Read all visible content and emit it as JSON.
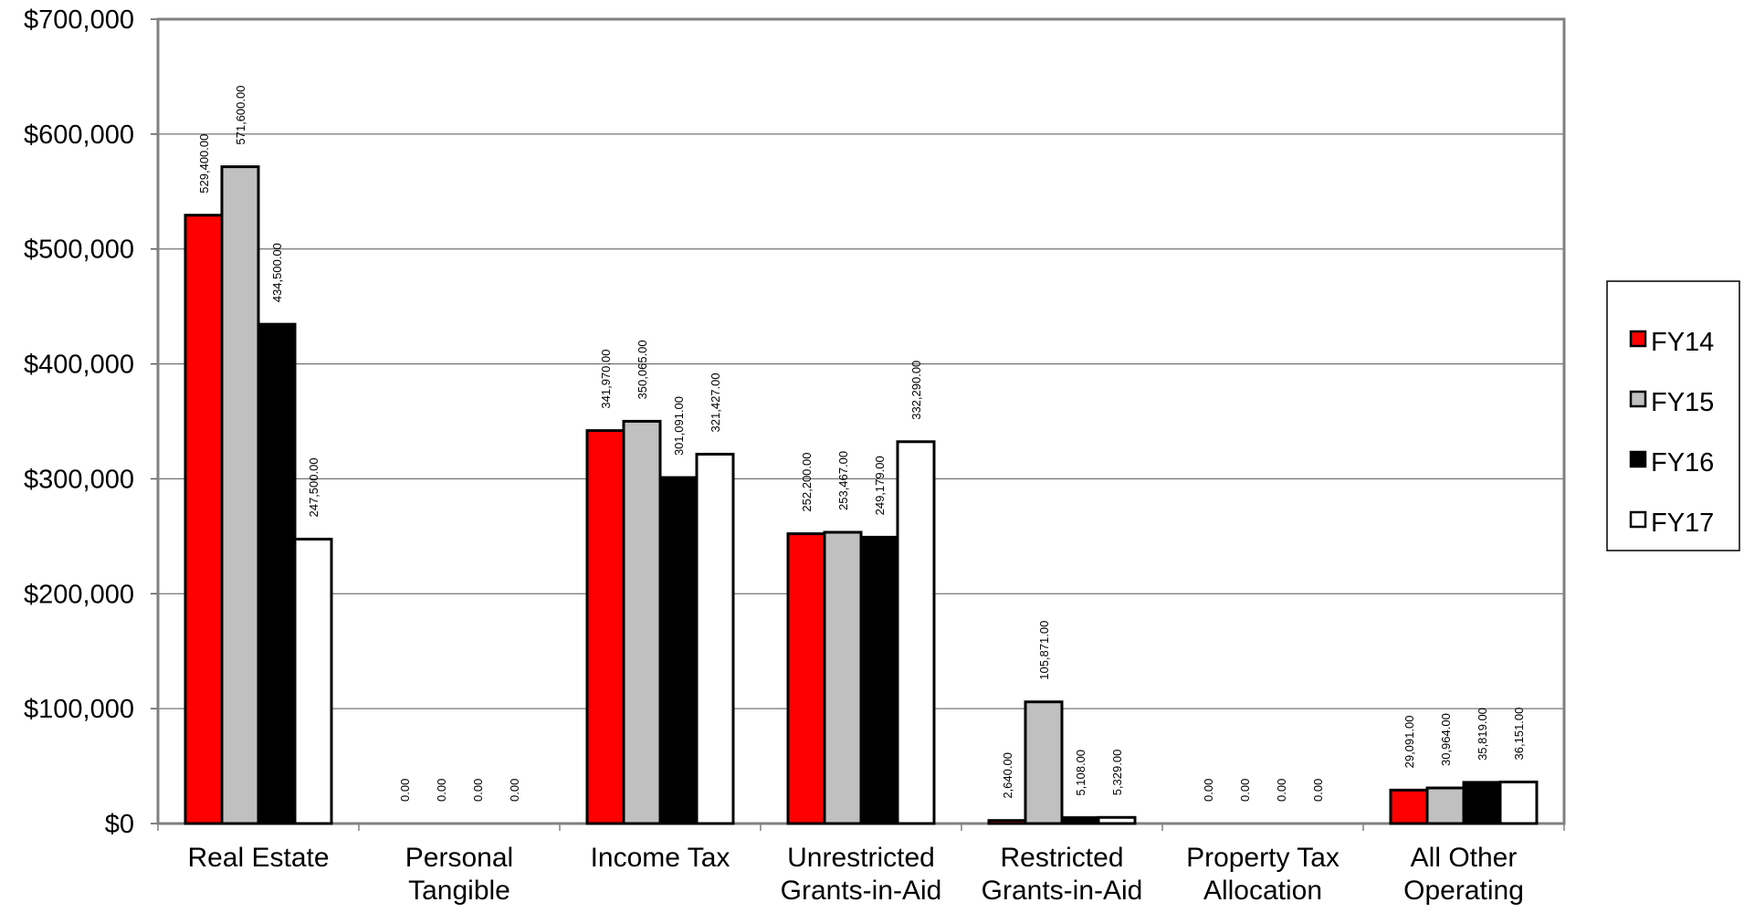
{
  "chart_data": {
    "type": "bar",
    "categories": [
      [
        "Real Estate"
      ],
      [
        "Personal",
        "Tangible"
      ],
      [
        "Income Tax"
      ],
      [
        "Unrestricted",
        "Grants-in-Aid"
      ],
      [
        "Restricted",
        "Grants-in-Aid"
      ],
      [
        "Property Tax",
        "Allocation"
      ],
      [
        "All Other",
        "Operating"
      ]
    ],
    "series": [
      {
        "name": "FY14",
        "color": "#ff0000",
        "values": [
          529400,
          0,
          341970,
          252200,
          2640,
          0,
          29091
        ],
        "labels": [
          "529,400.00",
          "0.00",
          "341,970.00",
          "252,200.00",
          "2,640.00",
          "0.00",
          "29,091.00"
        ]
      },
      {
        "name": "FY15",
        "color": "#c0c0c0",
        "values": [
          571600,
          0,
          350065,
          253467,
          105871,
          0,
          30964
        ],
        "labels": [
          "571,600.00",
          "0.00",
          "350,065.00",
          "253,467.00",
          "105,871.00",
          "0.00",
          "30,964.00"
        ]
      },
      {
        "name": "FY16",
        "color": "#000000",
        "values": [
          434500,
          0,
          301091,
          249179,
          5108,
          0,
          35819
        ],
        "labels": [
          "434,500.00",
          "0.00",
          "301,091.00",
          "249,179.00",
          "5,108.00",
          "0.00",
          "35,819.00"
        ]
      },
      {
        "name": "FY17",
        "color": "#ffffff",
        "values": [
          247500,
          0,
          321427,
          332290,
          5329,
          0,
          36151
        ],
        "labels": [
          "247,500.00",
          "0.00",
          "321,427.00",
          "332,290.00",
          "5,329.00",
          "0.00",
          "36,151.00"
        ]
      }
    ],
    "yticks": [
      0,
      100000,
      200000,
      300000,
      400000,
      500000,
      600000,
      700000
    ],
    "ytick_labels": [
      "$0",
      "$100,000",
      "$200,000",
      "$300,000",
      "$400,000",
      "$500,000",
      "$600,000",
      "$700,000"
    ],
    "ylim": [
      0,
      700000
    ],
    "grid": true,
    "legend": "right"
  }
}
